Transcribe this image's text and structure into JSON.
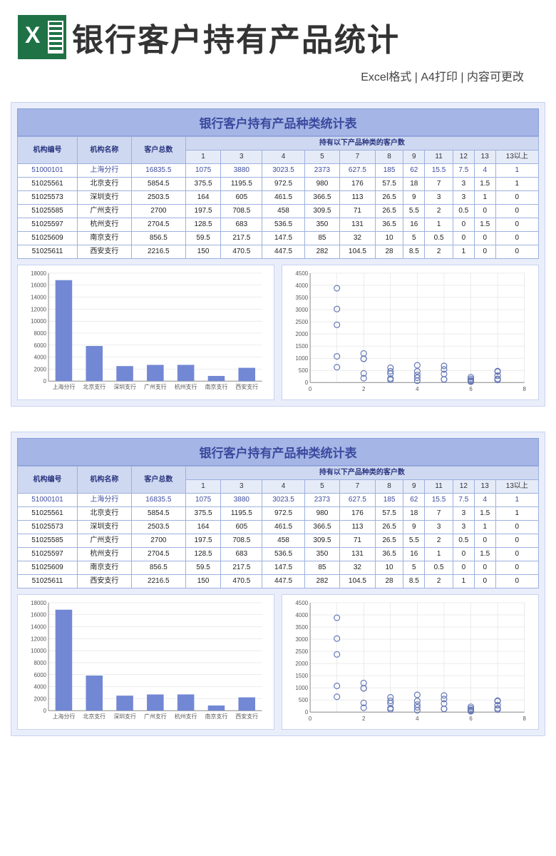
{
  "header": {
    "main_title": "银行客户持有产品统计",
    "subtitle": "Excel格式 | A4打印 | 内容可更改"
  },
  "sheet": {
    "title": "银行客户持有产品种类统计表",
    "col_groups": {
      "org_code": "机构编号",
      "org_name": "机构名称",
      "total": "客户总数",
      "holding_header": "持有以下产品种类的客户数"
    },
    "holding_cols": [
      "1",
      "3",
      "4",
      "5",
      "7",
      "8",
      "9",
      "11",
      "12",
      "13",
      "13以上"
    ],
    "rows": [
      {
        "code": "51000101",
        "name": "上海分行",
        "total": "16835.5",
        "vals": [
          "1075",
          "3880",
          "3023.5",
          "2373",
          "627.5",
          "185",
          "62",
          "15.5",
          "7.5",
          "4",
          "1"
        ],
        "highlight": true
      },
      {
        "code": "51025561",
        "name": "北京支行",
        "total": "5854.5",
        "vals": [
          "375.5",
          "1195.5",
          "972.5",
          "980",
          "176",
          "57.5",
          "18",
          "7",
          "3",
          "1.5",
          "1"
        ]
      },
      {
        "code": "51025573",
        "name": "深圳支行",
        "total": "2503.5",
        "vals": [
          "164",
          "605",
          "461.5",
          "366.5",
          "113",
          "26.5",
          "9",
          "3",
          "3",
          "1",
          "0"
        ]
      },
      {
        "code": "51025585",
        "name": "广州支行",
        "total": "2700",
        "vals": [
          "197.5",
          "708.5",
          "458",
          "309.5",
          "71",
          "26.5",
          "5.5",
          "2",
          "0.5",
          "0",
          "0"
        ]
      },
      {
        "code": "51025597",
        "name": "杭州支行",
        "total": "2704.5",
        "vals": [
          "128.5",
          "683",
          "536.5",
          "350",
          "131",
          "36.5",
          "16",
          "1",
          "0",
          "1.5",
          "0"
        ]
      },
      {
        "code": "51025609",
        "name": "南京支行",
        "total": "856.5",
        "vals": [
          "59.5",
          "217.5",
          "147.5",
          "85",
          "32",
          "10",
          "5",
          "0.5",
          "0",
          "0",
          "0"
        ]
      },
      {
        "code": "51025611",
        "name": "西安支行",
        "total": "2216.5",
        "vals": [
          "150",
          "470.5",
          "447.5",
          "282",
          "104.5",
          "28",
          "8.5",
          "2",
          "1",
          "0",
          "0"
        ]
      }
    ]
  },
  "bar_chart": {
    "type": "bar",
    "categories": [
      "上海分行",
      "北京支行",
      "深圳支行",
      "广州支行",
      "杭州支行",
      "南京支行",
      "西安支行"
    ],
    "values": [
      16835.5,
      5854.5,
      2503.5,
      2700,
      2704.5,
      856.5,
      2216.5
    ],
    "ylim": [
      0,
      18000
    ],
    "ytick_step": 2000,
    "bar_color": "#7288d4",
    "background_color": "#ffffff",
    "grid_color": "#d8d8d8",
    "bar_width": 0.55,
    "label_fontsize": 8
  },
  "scatter_chart": {
    "type": "scatter",
    "xlim": [
      0,
      8
    ],
    "ylim": [
      0,
      4500
    ],
    "ytick_step": 500,
    "xtick_step": 2,
    "marker_color": "#6477b5",
    "marker_style": "circle-open",
    "marker_size": 4,
    "background_color": "#ffffff",
    "grid_color": "#d8d8d8",
    "label_fontsize": 8,
    "series": [
      {
        "x": 1,
        "ys": [
          1075,
          3880,
          3023.5,
          2373,
          627.5
        ]
      },
      {
        "x": 2,
        "ys": [
          375.5,
          1195.5,
          972.5,
          980,
          176
        ]
      },
      {
        "x": 3,
        "ys": [
          164,
          605,
          461.5,
          366.5,
          113
        ]
      },
      {
        "x": 4,
        "ys": [
          197.5,
          708.5,
          458,
          309.5,
          71
        ]
      },
      {
        "x": 5,
        "ys": [
          128.5,
          683,
          536.5,
          350,
          131
        ]
      },
      {
        "x": 6,
        "ys": [
          59.5,
          217.5,
          147.5,
          85,
          32
        ]
      },
      {
        "x": 7,
        "ys": [
          150,
          470.5,
          447.5,
          282,
          104.5
        ]
      }
    ]
  }
}
